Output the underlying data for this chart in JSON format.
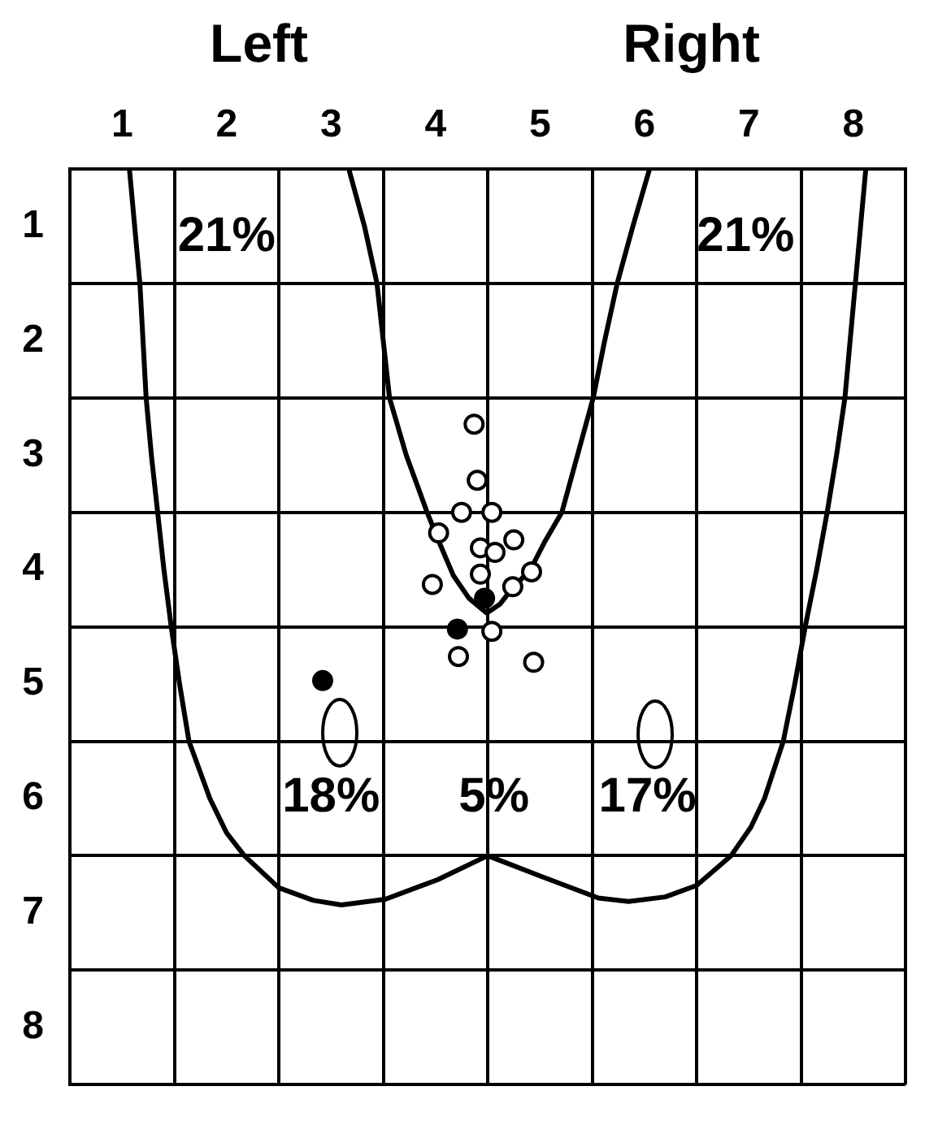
{
  "chart_data": {
    "type": "scatter",
    "annotations": [
      "Left",
      "Right",
      "21%",
      "21%",
      "18%",
      "5%",
      "17%"
    ],
    "xlim": [
      0.5,
      8.5
    ],
    "ylim": [
      8.5,
      0.5
    ],
    "xticks": [
      {
        "value": 0.5,
        "label": null
      },
      1,
      {
        "value": 1.5,
        "label": null
      },
      2,
      {
        "value": 2.5,
        "label": null
      },
      3,
      {
        "value": 3.5,
        "label": null
      },
      4,
      {
        "value": 4.5,
        "label": null
      },
      5,
      {
        "value": 5.5,
        "label": null
      },
      6,
      {
        "value": 6.5,
        "label": null
      },
      7,
      {
        "value": 7.5,
        "label": null
      },
      8,
      {
        "value": 8.5,
        "label": null
      }
    ],
    "yticks": [
      {
        "value": 0.5,
        "label": null
      },
      1,
      {
        "value": 1.5,
        "label": null
      },
      2,
      {
        "value": 2.5,
        "label": null
      },
      3,
      {
        "value": 3.5,
        "label": null
      },
      4,
      {
        "value": 4.5,
        "label": null
      },
      5,
      {
        "value": 5.5,
        "label": null
      },
      6,
      {
        "value": 6.5,
        "label": null
      },
      7,
      {
        "value": 7.5,
        "label": null
      },
      8,
      {
        "value": 8.5,
        "label": null
      }
    ],
    "grid": true,
    "marker": "circle",
    "series": [
      {
        "type": "line",
        "color": "#000000",
        "marker": "none",
        "x": [
          3.17,
          3.32,
          3.44,
          3.5,
          3.56,
          3.72,
          3.92,
          4.03,
          4.17,
          4.32,
          4.49,
          4.62,
          4.73,
          4.91,
          5.05,
          5.21,
          5.36,
          5.51,
          5.62,
          5.74,
          5.89,
          6.05
        ],
        "values": [
          0.5,
          1.0,
          1.5,
          2.0,
          2.5,
          3.0,
          3.5,
          3.75,
          4.05,
          4.25,
          4.38,
          4.3,
          4.17,
          4.0,
          3.75,
          3.5,
          3.0,
          2.5,
          2.0,
          1.5,
          1.0,
          0.5
        ]
      },
      {
        "type": "line",
        "color": "#000000",
        "marker": "none",
        "x": [
          1.07,
          1.12,
          1.17,
          1.2,
          1.23,
          1.28,
          1.34,
          1.4,
          1.47,
          1.55,
          1.64,
          1.84,
          2.0,
          2.17,
          2.5,
          2.83,
          3.1,
          3.52,
          4.02,
          4.5,
          5.01,
          5.56,
          5.85,
          6.2,
          6.5,
          6.83,
          7.02,
          7.15,
          7.33,
          7.44,
          7.54,
          7.65,
          7.75,
          7.84,
          7.92,
          7.97,
          8.02,
          8.07,
          8.12
        ],
        "values": [
          0.5,
          1.0,
          1.5,
          2.0,
          2.5,
          3.0,
          3.5,
          4.0,
          4.5,
          5.0,
          5.5,
          6.0,
          6.3,
          6.5,
          6.78,
          6.89,
          6.93,
          6.88,
          6.71,
          6.5,
          6.68,
          6.87,
          6.9,
          6.86,
          6.76,
          6.5,
          6.25,
          6.0,
          5.5,
          5.0,
          4.5,
          4.0,
          3.5,
          3.0,
          2.5,
          2.0,
          1.5,
          1.0,
          0.5
        ]
      },
      {
        "color": "#000000",
        "x": [
          4.37,
          4.4,
          4.25,
          4.54,
          4.03,
          4.75,
          4.43,
          4.57,
          4.92,
          4.43,
          3.97,
          4.74,
          4.54,
          4.22,
          4.94
        ],
        "values": [
          2.73,
          3.22,
          3.5,
          3.5,
          3.68,
          3.74,
          3.81,
          3.85,
          4.02,
          4.04,
          4.13,
          4.15,
          4.54,
          4.76,
          4.81
        ]
      },
      {
        "color": "#000000",
        "x": [
          4.47,
          4.21,
          2.92
        ],
        "values": [
          4.25,
          4.52,
          4.97
        ]
      }
    ]
  }
}
